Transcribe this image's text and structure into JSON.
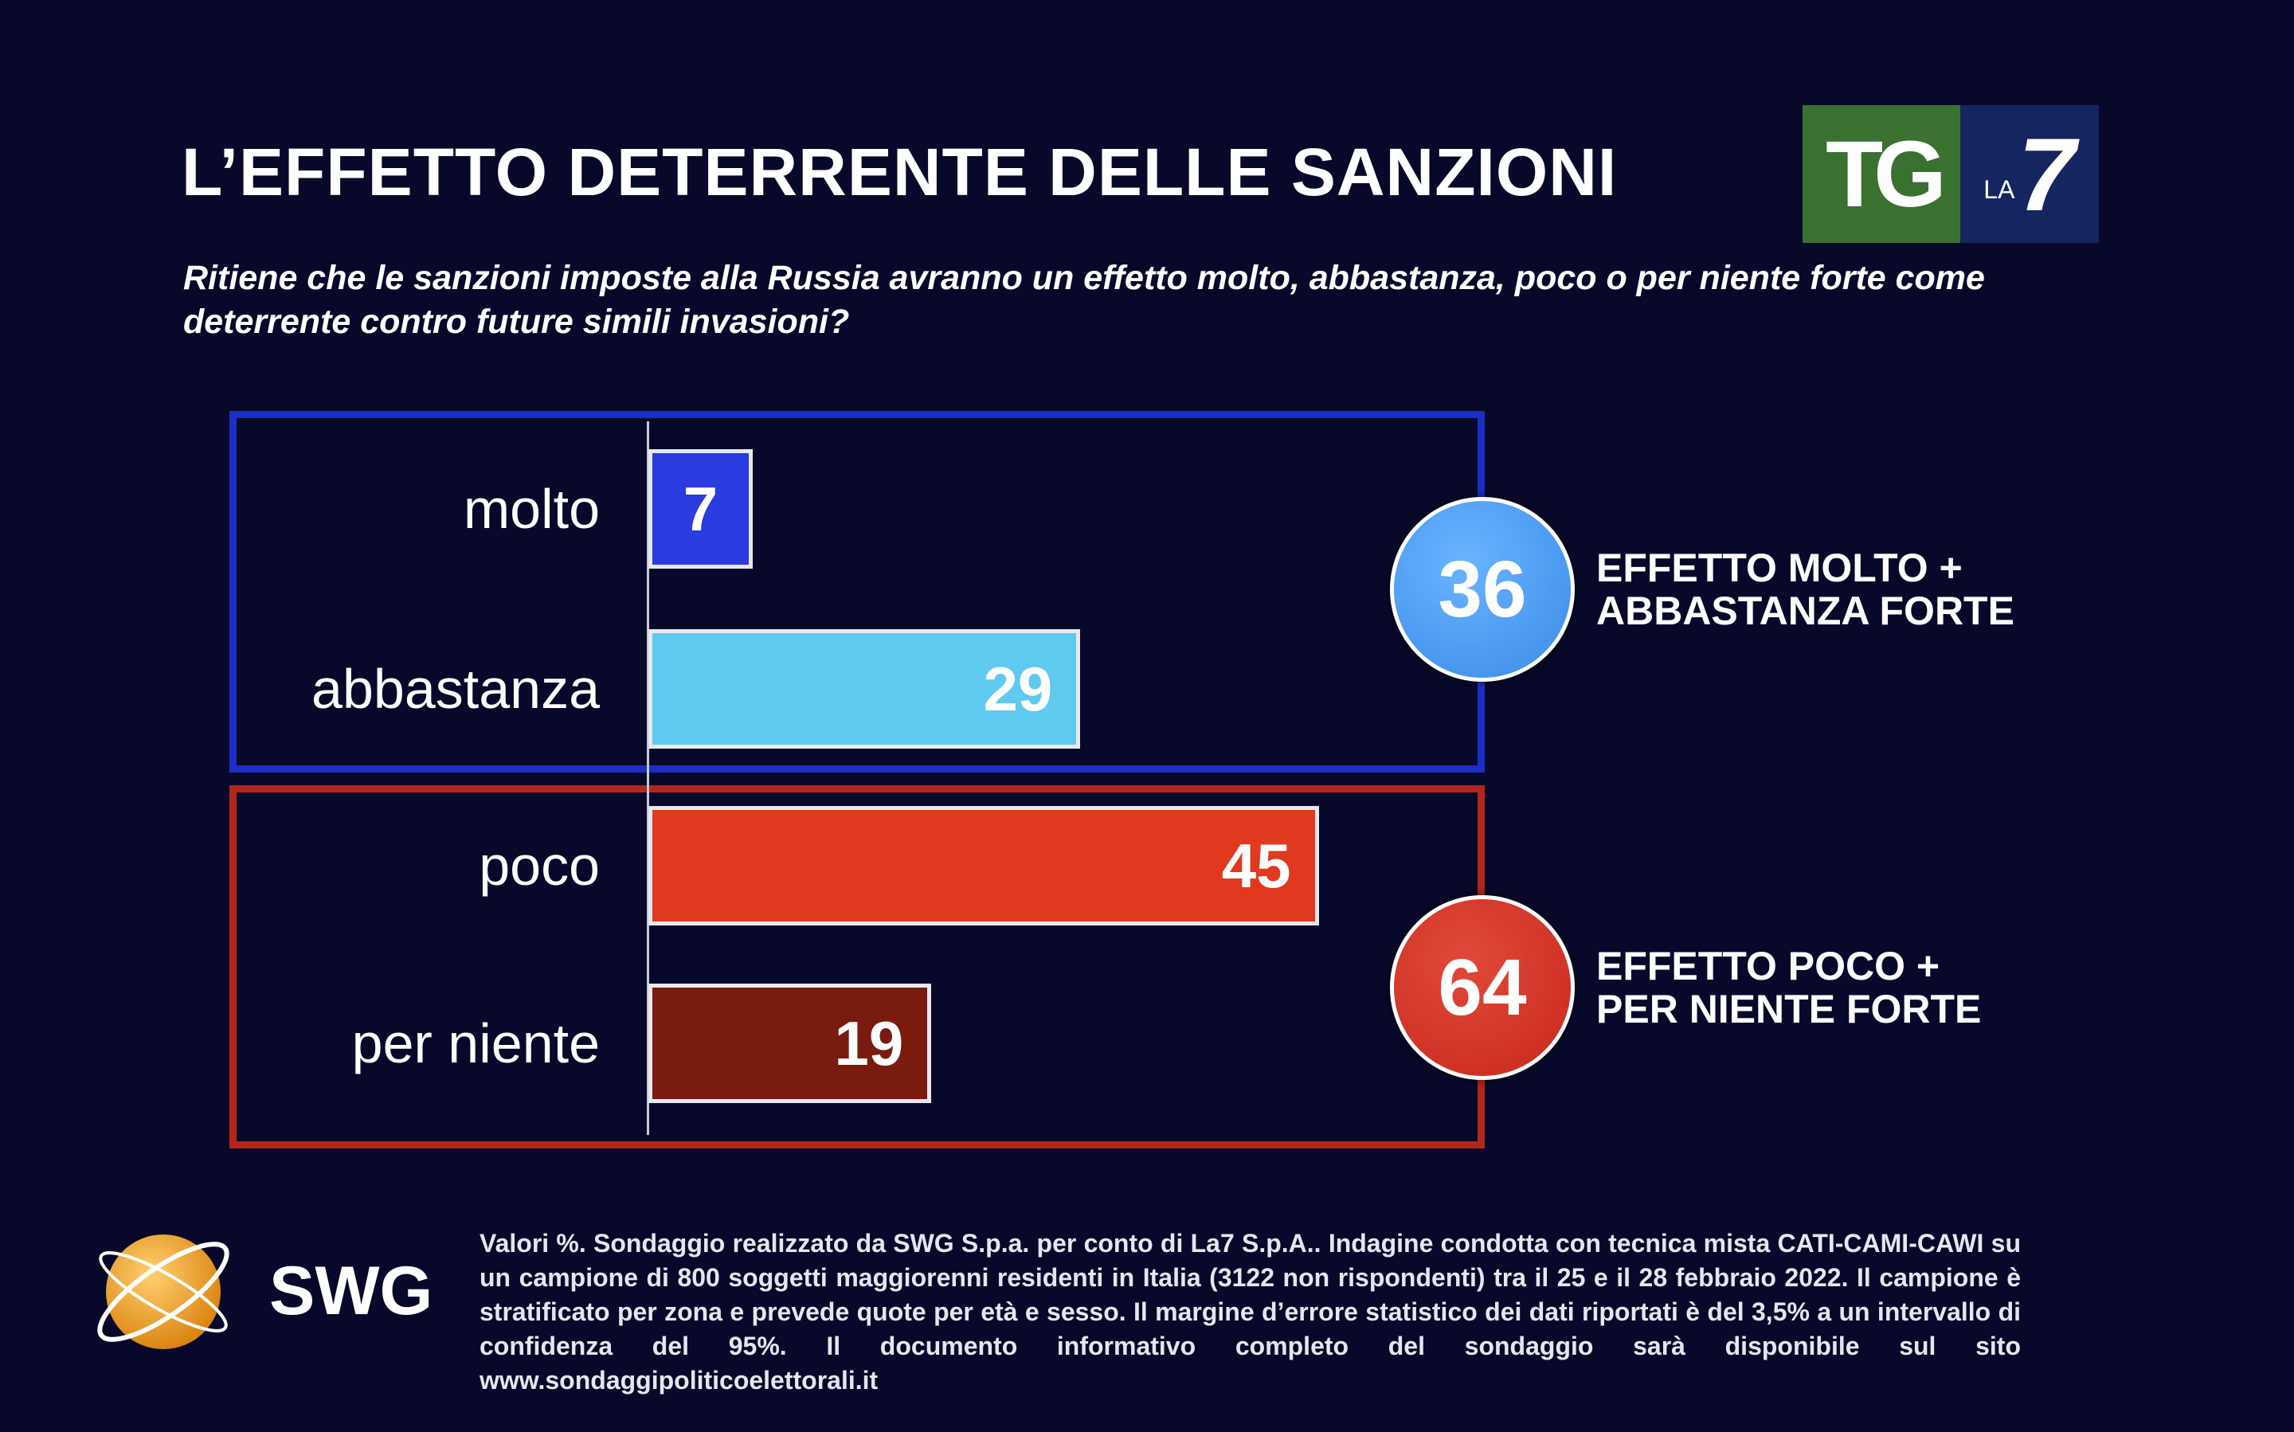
{
  "title": "L’EFFETTO DETERRENTE DELLE SANZIONI",
  "subtitle": "Ritiene che le sanzioni imposte alla Russia avranno un effetto molto, abbastanza, poco o per niente forte come deterrente contro future simili invasioni?",
  "logo": {
    "tg": "TG",
    "la": "LA",
    "seven": "7"
  },
  "chart_data": {
    "type": "bar",
    "orientation": "horizontal",
    "title": "L’EFFETTO DETERRENTE DELLE SANZIONI",
    "unit": "%",
    "categories": [
      "molto",
      "abbastanza",
      "poco",
      "per niente"
    ],
    "values": [
      7,
      29,
      45,
      19
    ],
    "colors": [
      "#2a3be0",
      "#5fc9ef",
      "#e0391f",
      "#7a1b10"
    ],
    "groups": [
      {
        "label": "EFFETTO MOLTO + ABBASTANZA FORTE",
        "line1": "EFFETTO MOLTO +",
        "line2": "ABBASTANZA FORTE",
        "total": 36,
        "color": "#3a8be8",
        "border": "#1b2fc8"
      },
      {
        "label": "EFFETTO POCO + PER NIENTE FORTE",
        "line1": "EFFETTO POCO +",
        "line2": "PER NIENTE FORTE",
        "total": 64,
        "color": "#c8281c",
        "border": "#b3261b"
      }
    ]
  },
  "brand": "SWG",
  "footer": "Valori %. Sondaggio realizzato da SWG S.p.a. per conto di La7 S.p.A.. Indagine condotta con tecnica mista CATI-CAMI-CAWI su un campione di 800 soggetti maggiorenni residenti in Italia (3122 non rispondenti) tra il 25 e il 28 febbraio 2022. Il campione è stratificato per zona e prevede quote per età e sesso. Il margine d’errore statistico dei dati riportati è del 3,5% a un intervallo di confidenza del 95%. Il documento informativo completo del sondaggio sarà disponibile sul sito www.sondaggipoliticoelettorali.it"
}
